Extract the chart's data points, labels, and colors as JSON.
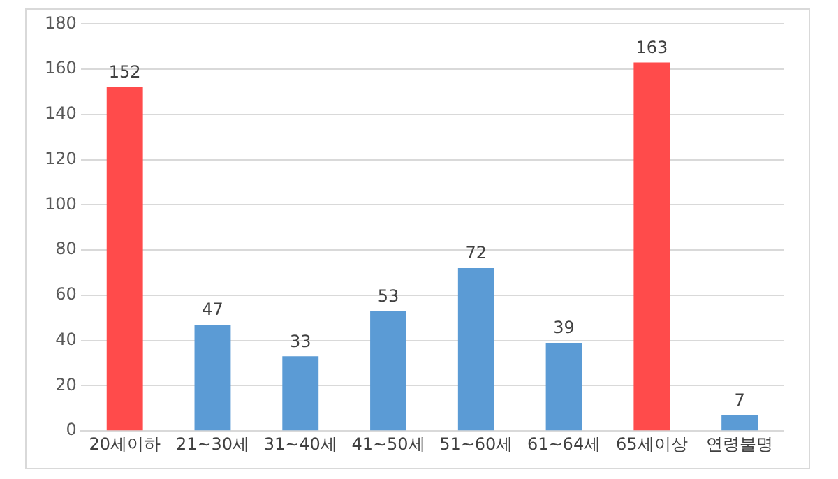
{
  "chart_data": {
    "type": "bar",
    "categories": [
      "20세이하",
      "21~30세",
      "31~40세",
      "41~50세",
      "51~60세",
      "61~64세",
      "65세이상",
      "연령불명"
    ],
    "values": [
      152,
      47,
      33,
      53,
      72,
      39,
      163,
      7
    ],
    "colors": [
      "#ff4b4b",
      "#5b9bd5",
      "#5b9bd5",
      "#5b9bd5",
      "#5b9bd5",
      "#5b9bd5",
      "#ff4b4b",
      "#5b9bd5"
    ],
    "ylim": [
      0,
      180
    ],
    "yticks": [
      0,
      20,
      40,
      60,
      80,
      100,
      120,
      140,
      160,
      180
    ],
    "grid": "y",
    "legend": false,
    "data_labels": true
  }
}
